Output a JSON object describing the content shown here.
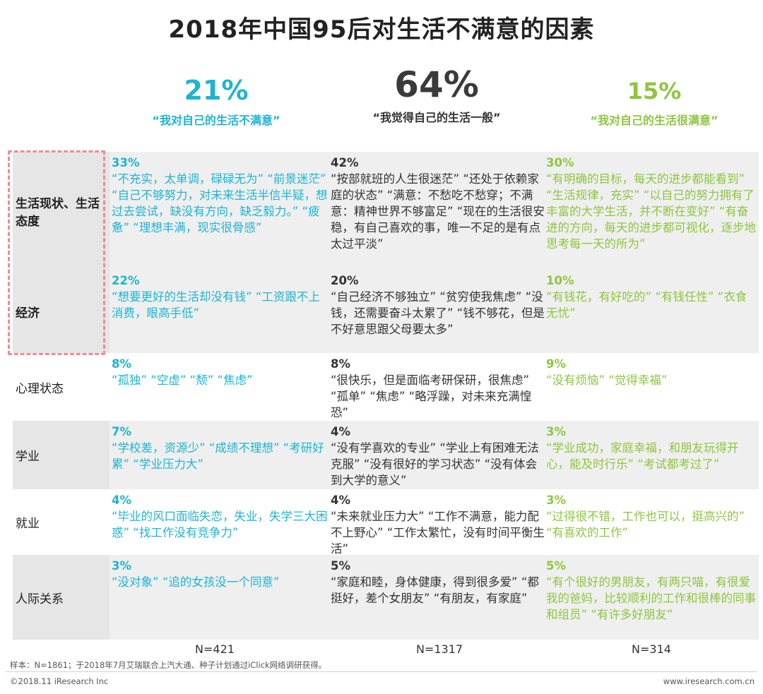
{
  "title": "2018年中国95后对生活不满意的因素",
  "columns": [
    {
      "pct": "21%",
      "quote": "“我对自己的生活不满意”",
      "color": "#1fb4d2"
    },
    {
      "pct": "64%",
      "quote": "“我觉得自己的生活一般”",
      "color": "#3a3a3a"
    },
    {
      "pct": "15%",
      "quote": "“我对自己的生活很满意”",
      "color": "#8dc63f"
    }
  ],
  "rows": [
    {
      "label": "生活现状、生活态度",
      "c1": {
        "pct": "33%",
        "text": "“不充实，太单调，碌碌无为” “前景迷茫” “自己不够努力，对未来生活半信半疑，想过去尝试，缺没有方向，缺乏毅力。” “疲惫” “理想丰满，现实很骨感”"
      },
      "c2": {
        "pct": "42%",
        "text": "“按部就班的人生很迷茫” “还处于依赖家庭的状态” “满意：不愁吃不愁穿；不满意：精神世界不够富足” “现在的生活很安稳，有自己喜欢的事，唯一不足的是有点太过平淡”"
      },
      "c3": {
        "pct": "30%",
        "text": "“有明确的目标，每天的进步都能看到” “生活规律，充实” “以自己的努力拥有了丰富的大学生活，并不断在变好” “有奋进的方向，每天的进步都可视化，逐步地思考每一天的所为”"
      }
    },
    {
      "label": "经济",
      "c1": {
        "pct": "22%",
        "text": "“想要更好的生活却没有钱” “工资跟不上消费，眼高手低”"
      },
      "c2": {
        "pct": "20%",
        "text": "“自己经济不够独立” “贫穷使我焦虑” “没钱，还需要奋斗太累了” “钱不够花，但是不好意思跟父母要太多”"
      },
      "c3": {
        "pct": "10%",
        "text": "“有钱花，有好吃的” “有钱任性” “衣食无忧”"
      }
    },
    {
      "label": "心理状态",
      "c1": {
        "pct": "8%",
        "text": "“孤独” “空虚” “颓” “焦虑”"
      },
      "c2": {
        "pct": "8%",
        "text": "“很快乐，但是面临考研保研，很焦虑” “孤单” “焦虑” “略浮躁，对未来充满惶恐”"
      },
      "c3": {
        "pct": "9%",
        "text": "“没有烦恼” “觉得幸福”"
      }
    },
    {
      "label": "学业",
      "c1": {
        "pct": "7%",
        "text": "“学校差，资源少” “成绩不理想” “考研好累” “学业压力大”"
      },
      "c2": {
        "pct": "4%",
        "text": "“没有学喜欢的专业” “学业上有困难无法克服” “没有很好的学习状态” “没有体会到大学的意义”"
      },
      "c3": {
        "pct": "3%",
        "text": "“学业成功，家庭幸福，和朋友玩得开心，能及时行乐” “考试都考过了”"
      }
    },
    {
      "label": "就业",
      "c1": {
        "pct": "4%",
        "text": "“毕业的风口面临失恋，失业，失学三大困惑” “找工作没有竞争力”"
      },
      "c2": {
        "pct": "4%",
        "text": "“未来就业压力大” “工作不满意，能力配不上野心” “工作太繁忙，没有时间平衡生活”"
      },
      "c3": {
        "pct": "3%",
        "text": "“过得很不错，工作也可以，挺高兴的” “有喜欢的工作”"
      }
    },
    {
      "label": "人际关系",
      "c1": {
        "pct": "3%",
        "text": "“没对象” “追的女孩没一个同意”"
      },
      "c2": {
        "pct": "5%",
        "text": "“家庭和睦，身体健康，得到很多爱” “都挺好，差个女朋友” “有朋友，有家庭”"
      },
      "c3": {
        "pct": "5%",
        "text": "“有个很好的男朋友，有两只喵，有很爱我的爸妈，比较顺利的工作和很棒的同事和组员” “有许多好朋友”"
      }
    }
  ],
  "samples": [
    "N=421",
    "N=1317",
    "N=314"
  ],
  "footnote": "样本：N=1861；于2018年7月艾瑞联合上汽大通、种子计划通过iClick网络调研获得。",
  "copyright": "©2018.11 iResearch Inc",
  "website": "www.iresearch.com.cn"
}
